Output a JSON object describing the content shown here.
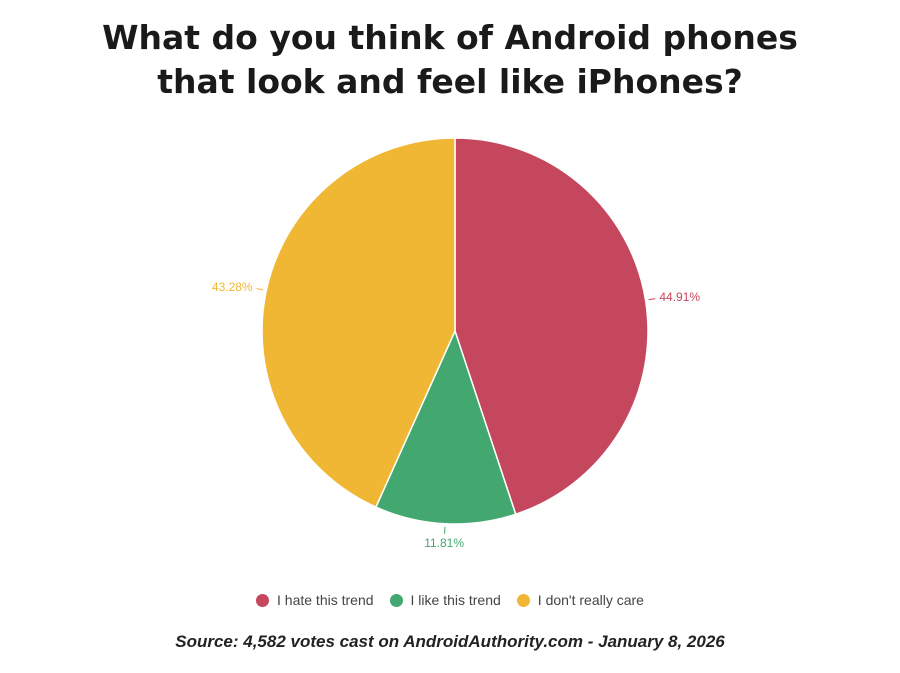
{
  "chart_data": {
    "type": "pie",
    "title": "What do you think of Android phones that look and feel like iPhones?",
    "categories": [
      "I hate this trend",
      "I like this trend",
      "I don't really care"
    ],
    "values": [
      44.91,
      11.81,
      43.28
    ],
    "value_labels": [
      "44.91%",
      "11.81%",
      "43.28%"
    ],
    "colors": [
      "#c5475e",
      "#42a86f",
      "#f0b735"
    ],
    "source": "Source: 4,582 votes cast on AndroidAuthority.com - January 8, 2026"
  }
}
